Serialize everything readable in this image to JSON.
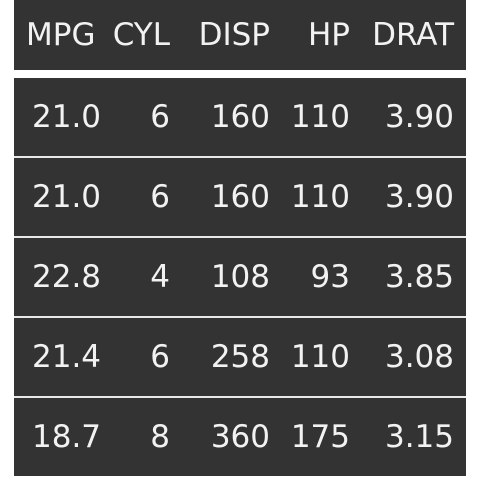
{
  "table": {
    "columns": [
      "MPG",
      "CYL",
      "DISP",
      "HP",
      "DRAT"
    ],
    "rows": [
      [
        "21.0",
        "6",
        "160",
        "110",
        "3.90"
      ],
      [
        "21.0",
        "6",
        "160",
        "110",
        "3.90"
      ],
      [
        "22.8",
        "4",
        "108",
        "93",
        "3.85"
      ],
      [
        "21.4",
        "6",
        "258",
        "110",
        "3.08"
      ],
      [
        "18.7",
        "8",
        "360",
        "175",
        "3.15"
      ]
    ]
  },
  "colors": {
    "row_background": "#333333",
    "text": "#f2f2f2",
    "separator": "#ffffff"
  }
}
